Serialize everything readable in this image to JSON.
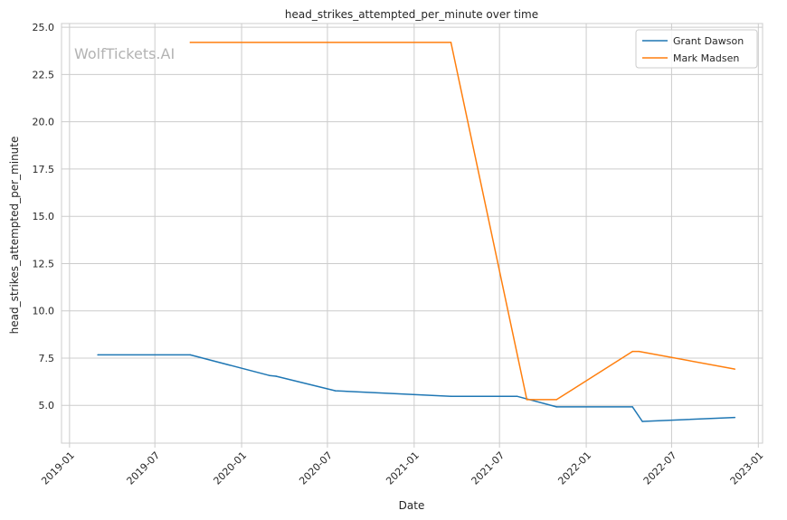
{
  "watermark": "WolfTickets.AI",
  "chart_data": {
    "type": "line",
    "title": "head_strikes_attempted_per_minute over time",
    "xlabel": "Date",
    "ylabel": "head_strikes_attempted_per_minute",
    "x_type": "date",
    "xlim": [
      "2018-12-15",
      "2023-01-10"
    ],
    "ylim": [
      3.0,
      25.2
    ],
    "x_ticks": [
      "2019-01-01",
      "2019-07-01",
      "2020-01-01",
      "2020-07-01",
      "2021-01-01",
      "2021-07-01",
      "2022-01-01",
      "2022-07-01",
      "2023-01-01"
    ],
    "x_tick_labels": [
      "2019-01",
      "2019-07",
      "2020-01",
      "2020-07",
      "2021-01",
      "2021-07",
      "2022-01",
      "2022-07",
      "2023-01"
    ],
    "y_ticks": [
      5.0,
      7.5,
      10.0,
      12.5,
      15.0,
      17.5,
      20.0,
      22.5,
      25.0
    ],
    "y_tick_labels": [
      "5.0",
      "7.5",
      "10.0",
      "12.5",
      "15.0",
      "17.5",
      "20.0",
      "22.5",
      "25.0"
    ],
    "grid": true,
    "legend_position": "top-right",
    "series": [
      {
        "name": "Grant Dawson",
        "color": "#1f77b4",
        "points": [
          {
            "x": "2019-03-02",
            "y": 7.67
          },
          {
            "x": "2019-09-14",
            "y": 7.67
          },
          {
            "x": "2020-02-29",
            "y": 6.58
          },
          {
            "x": "2020-03-14",
            "y": 6.54
          },
          {
            "x": "2020-07-18",
            "y": 5.77
          },
          {
            "x": "2021-03-20",
            "y": 5.48
          },
          {
            "x": "2021-08-07",
            "y": 5.48
          },
          {
            "x": "2021-10-30",
            "y": 4.92
          },
          {
            "x": "2022-04-09",
            "y": 4.92
          },
          {
            "x": "2022-04-30",
            "y": 4.15
          },
          {
            "x": "2022-11-12",
            "y": 4.36
          }
        ]
      },
      {
        "name": "Mark Madsen",
        "color": "#ff7f0e",
        "points": [
          {
            "x": "2019-09-14",
            "y": 24.2
          },
          {
            "x": "2021-03-20",
            "y": 24.2
          },
          {
            "x": "2021-08-28",
            "y": 5.3
          },
          {
            "x": "2021-10-30",
            "y": 5.3
          },
          {
            "x": "2022-04-09",
            "y": 7.85
          },
          {
            "x": "2022-04-23",
            "y": 7.85
          },
          {
            "x": "2022-11-12",
            "y": 6.92
          }
        ]
      }
    ]
  }
}
